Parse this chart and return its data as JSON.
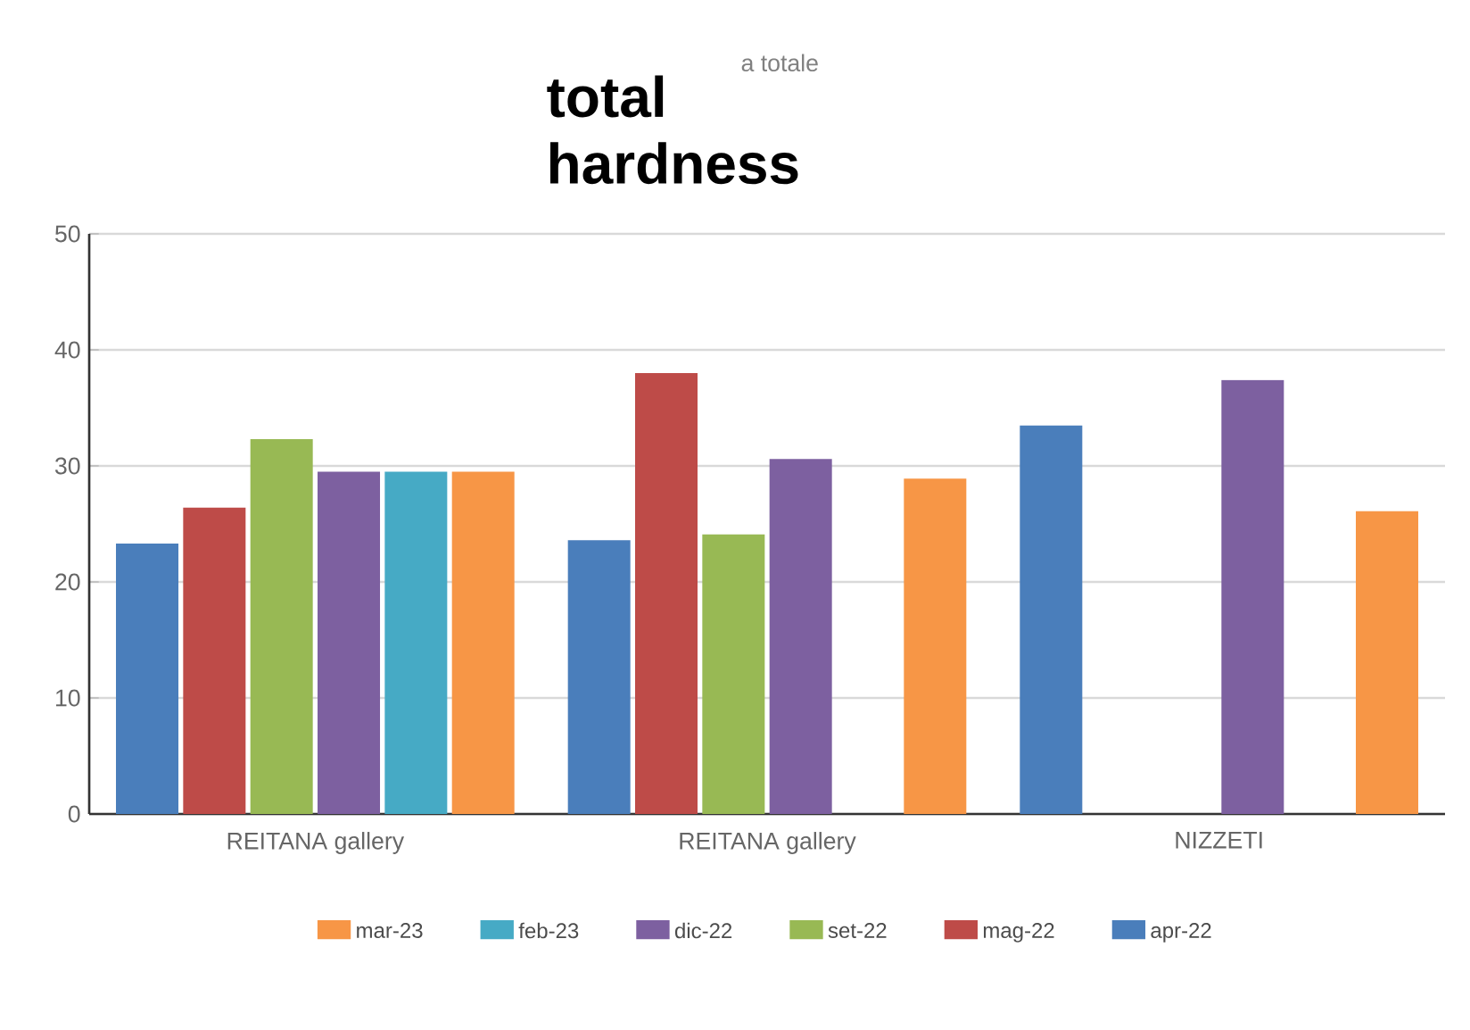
{
  "chart_data": {
    "type": "bar",
    "title": "total hardness",
    "annotations": [
      "a totale"
    ],
    "categories": [
      "REITANA gallery",
      "REITANA gallery",
      "NIZZETI"
    ],
    "series": [
      {
        "name": "apr-22",
        "color": "#4a7ebb",
        "values": [
          23.3,
          23.6,
          33.5
        ]
      },
      {
        "name": "mag-22",
        "color": "#be4b48",
        "values": [
          26.4,
          38.0,
          null
        ]
      },
      {
        "name": "set-22",
        "color": "#98b954",
        "values": [
          32.3,
          24.1,
          null
        ]
      },
      {
        "name": "dic-22",
        "color": "#7d60a0",
        "values": [
          29.5,
          30.6,
          37.4
        ]
      },
      {
        "name": "feb-23",
        "color": "#46aac5",
        "values": [
          29.5,
          null,
          null
        ]
      },
      {
        "name": "mar-23",
        "color": "#f79646",
        "values": [
          29.5,
          28.9,
          26.1
        ]
      }
    ],
    "ylim": [
      0,
      50
    ],
    "yticks": [
      0,
      10,
      20,
      30,
      40,
      50
    ],
    "grid": "y",
    "legend": "bottom"
  }
}
